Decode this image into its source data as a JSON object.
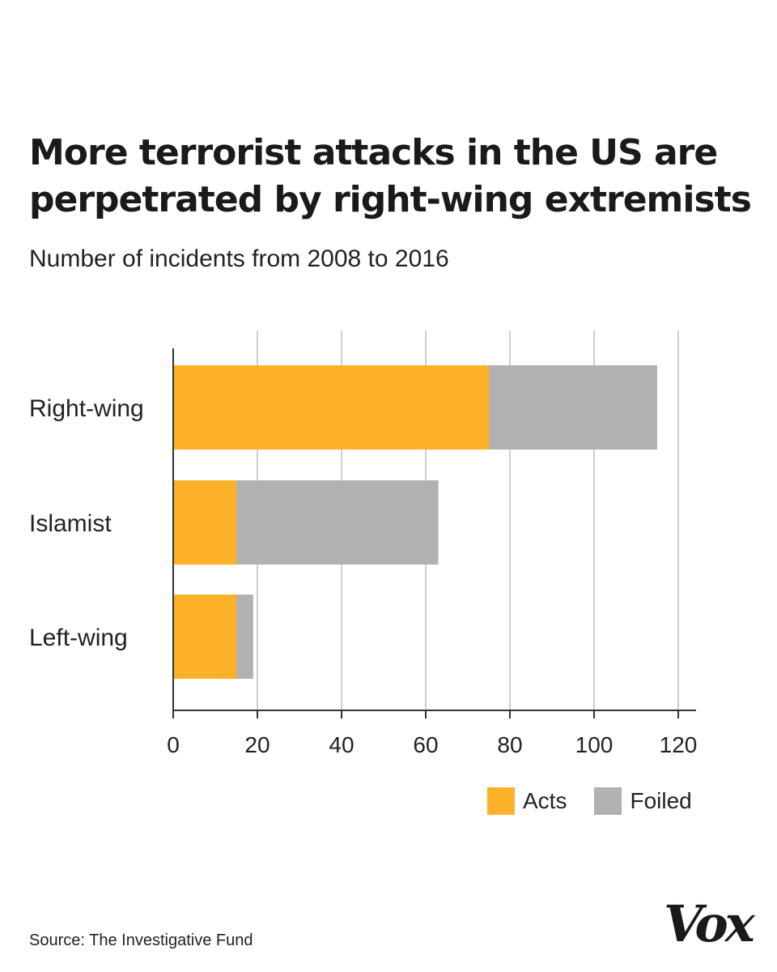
{
  "title_line1": "More terrorist attacks in the US are",
  "title_line2": "perpetrated by right-wing extremists",
  "subtitle": "Number of incidents from 2008 to 2016",
  "source": "Source: The Investigative Fund",
  "logo_text": "Vox",
  "colors": {
    "acts": "#FDB128",
    "foiled": "#B1B1B3",
    "grid": "#BDBDBD",
    "axis": "#333333",
    "text": "#222222"
  },
  "chart_data": {
    "type": "bar",
    "orientation": "horizontal",
    "stacked": true,
    "categories": [
      "Right-wing",
      "Islamist",
      "Left-wing"
    ],
    "series": [
      {
        "name": "Acts",
        "values": [
          75,
          15,
          15
        ]
      },
      {
        "name": "Foiled",
        "values": [
          40,
          48,
          4
        ]
      }
    ],
    "xlim": [
      0,
      120
    ],
    "xticks": [
      0,
      20,
      40,
      60,
      80,
      100,
      120
    ],
    "grid": true,
    "legend_position": "bottom-right",
    "title": "More terrorist attacks in the US are perpetrated by right-wing extremists",
    "subtitle": "Number of incidents from 2008 to 2016",
    "xlabel": "",
    "ylabel": ""
  }
}
